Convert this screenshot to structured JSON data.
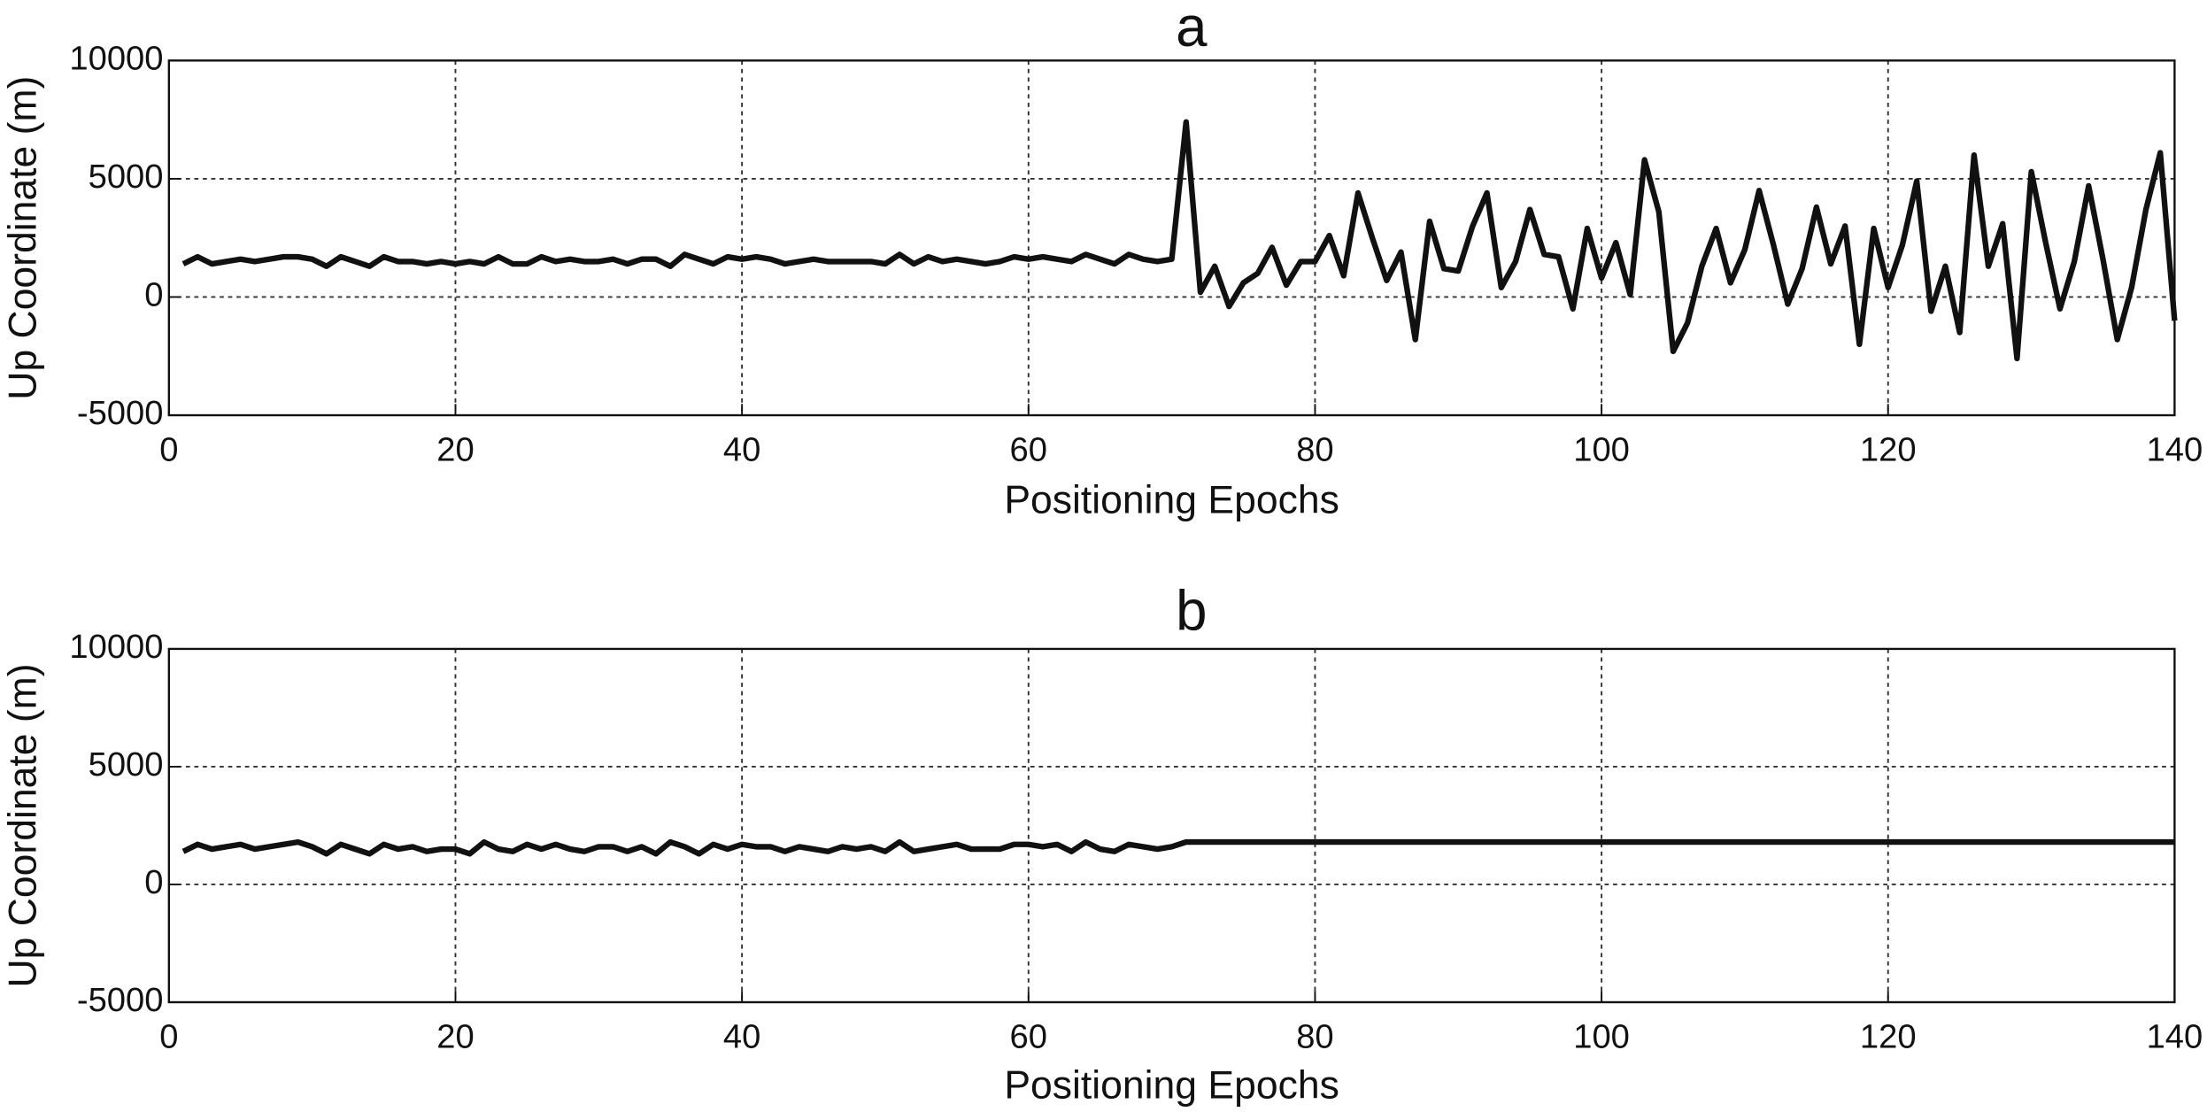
{
  "chart_data": [
    {
      "type": "line",
      "title": "a",
      "xlabel": "Positioning Epochs",
      "ylabel": "Up Coordinate (m)",
      "x": [
        1,
        2,
        3,
        4,
        5,
        6,
        7,
        8,
        9,
        10,
        11,
        12,
        13,
        14,
        15,
        16,
        17,
        18,
        19,
        20,
        21,
        22,
        23,
        24,
        25,
        26,
        27,
        28,
        29,
        30,
        31,
        32,
        33,
        34,
        35,
        36,
        37,
        38,
        39,
        40,
        41,
        42,
        43,
        44,
        45,
        46,
        47,
        48,
        49,
        50,
        51,
        52,
        53,
        54,
        55,
        56,
        57,
        58,
        59,
        60,
        61,
        62,
        63,
        64,
        65,
        66,
        67,
        68,
        69,
        70,
        71,
        72,
        73,
        74,
        75,
        76,
        77,
        78,
        79,
        80,
        81,
        82,
        83,
        84,
        85,
        86,
        87,
        88,
        89,
        90,
        91,
        92,
        93,
        94,
        95,
        96,
        97,
        98,
        99,
        100,
        101,
        102,
        103,
        104,
        105,
        106,
        107,
        108,
        109,
        110,
        111,
        112,
        113,
        114,
        115,
        116,
        117,
        118,
        119,
        120,
        121,
        122,
        123,
        124,
        125,
        126,
        127,
        128,
        129,
        130,
        131,
        132,
        133,
        134,
        135,
        136,
        137,
        138,
        139,
        140
      ],
      "values": [
        1400,
        1700,
        1400,
        1500,
        1600,
        1500,
        1600,
        1700,
        1700,
        1600,
        1300,
        1700,
        1500,
        1300,
        1700,
        1500,
        1500,
        1400,
        1500,
        1400,
        1500,
        1400,
        1700,
        1400,
        1400,
        1700,
        1500,
        1600,
        1500,
        1500,
        1600,
        1400,
        1600,
        1600,
        1300,
        1800,
        1600,
        1400,
        1700,
        1600,
        1700,
        1600,
        1400,
        1500,
        1600,
        1500,
        1500,
        1500,
        1500,
        1400,
        1800,
        1400,
        1700,
        1500,
        1600,
        1500,
        1400,
        1500,
        1700,
        1600,
        1700,
        1600,
        1500,
        1800,
        1600,
        1400,
        1800,
        1600,
        1500,
        1600,
        7400,
        200,
        1300,
        -400,
        600,
        1000,
        2100,
        500,
        1500,
        1500,
        2600,
        900,
        4400,
        2500,
        700,
        1900,
        -1800,
        3200,
        1200,
        1100,
        3000,
        4400,
        400,
        1500,
        3700,
        1800,
        1700,
        -500,
        2900,
        800,
        2300,
        100,
        5800,
        3600,
        -2300,
        -1100,
        1300,
        2900,
        600,
        2000,
        4500,
        2200,
        -300,
        1200,
        3800,
        1400,
        3000,
        -2000,
        2900,
        400,
        2200,
        4900,
        -600,
        1300,
        -1500,
        6000,
        1300,
        3100,
        -2600,
        5300,
        2300,
        -500,
        1500,
        4700,
        1600,
        -1800,
        400,
        3700,
        6100,
        -1000
      ],
      "color": "#111111",
      "xlim": [
        0,
        140
      ],
      "xticks": [
        0,
        20,
        40,
        60,
        80,
        100,
        120,
        140
      ],
      "ylim": [
        -5000,
        10000
      ],
      "yticks": [
        -5000,
        0,
        5000,
        10000
      ],
      "grid": true
    },
    {
      "type": "line",
      "title": "b",
      "xlabel": "Positioning Epochs",
      "ylabel": "Up Coordinate (m)",
      "x": [
        1,
        2,
        3,
        4,
        5,
        6,
        7,
        8,
        9,
        10,
        11,
        12,
        13,
        14,
        15,
        16,
        17,
        18,
        19,
        20,
        21,
        22,
        23,
        24,
        25,
        26,
        27,
        28,
        29,
        30,
        31,
        32,
        33,
        34,
        35,
        36,
        37,
        38,
        39,
        40,
        41,
        42,
        43,
        44,
        45,
        46,
        47,
        48,
        49,
        50,
        51,
        52,
        53,
        54,
        55,
        56,
        57,
        58,
        59,
        60,
        61,
        62,
        63,
        64,
        65,
        66,
        67,
        68,
        69,
        70,
        71,
        72,
        73,
        74,
        75,
        76,
        77,
        78,
        79,
        80,
        81,
        82,
        83,
        84,
        85,
        86,
        87,
        88,
        89,
        90,
        91,
        92,
        93,
        94,
        95,
        96,
        97,
        98,
        99,
        100,
        101,
        102,
        103,
        104,
        105,
        106,
        107,
        108,
        109,
        110,
        111,
        112,
        113,
        114,
        115,
        116,
        117,
        118,
        119,
        120,
        121,
        122,
        123,
        124,
        125,
        126,
        127,
        128,
        129,
        130,
        131,
        132,
        133,
        134,
        135,
        136,
        137,
        138,
        139,
        140
      ],
      "values": [
        1400,
        1700,
        1500,
        1600,
        1700,
        1500,
        1600,
        1700,
        1800,
        1600,
        1300,
        1700,
        1500,
        1300,
        1700,
        1500,
        1600,
        1400,
        1500,
        1500,
        1300,
        1800,
        1500,
        1400,
        1700,
        1500,
        1700,
        1500,
        1400,
        1600,
        1600,
        1400,
        1600,
        1300,
        1800,
        1600,
        1300,
        1700,
        1500,
        1700,
        1600,
        1600,
        1400,
        1600,
        1500,
        1400,
        1600,
        1500,
        1600,
        1400,
        1800,
        1400,
        1500,
        1600,
        1700,
        1500,
        1500,
        1500,
        1700,
        1700,
        1600,
        1700,
        1400,
        1800,
        1500,
        1400,
        1700,
        1600,
        1500,
        1600,
        1800,
        1800,
        1800,
        1800,
        1800,
        1800,
        1800,
        1800,
        1800,
        1800,
        1800,
        1800,
        1800,
        1800,
        1800,
        1800,
        1800,
        1800,
        1800,
        1800,
        1800,
        1800,
        1800,
        1800,
        1800,
        1800,
        1800,
        1800,
        1800,
        1800,
        1800,
        1800,
        1800,
        1800,
        1800,
        1800,
        1800,
        1800,
        1800,
        1800,
        1800,
        1800,
        1800,
        1800,
        1800,
        1800,
        1800,
        1800,
        1800,
        1800,
        1800,
        1800,
        1800,
        1800,
        1800,
        1800,
        1800,
        1800,
        1800,
        1800,
        1800,
        1800,
        1800,
        1800,
        1800,
        1800,
        1800,
        1800,
        1800,
        1800
      ],
      "color": "#111111",
      "xlim": [
        0,
        140
      ],
      "xticks": [
        0,
        20,
        40,
        60,
        80,
        100,
        120,
        140
      ],
      "ylim": [
        -5000,
        10000
      ],
      "yticks": [
        -5000,
        0,
        5000,
        10000
      ],
      "grid": true
    }
  ]
}
